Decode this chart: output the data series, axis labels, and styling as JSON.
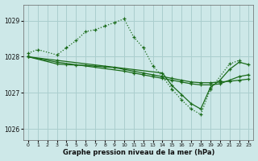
{
  "xlabel": "Graphe pression niveau de la mer (hPa)",
  "background_color": "#cde8e8",
  "grid_color": "#aacece",
  "line_color": "#1a6b1a",
  "xlim": [
    -0.5,
    23.5
  ],
  "ylim": [
    1025.7,
    1029.45
  ],
  "yticks": [
    1026,
    1027,
    1028,
    1029
  ],
  "xticks": [
    0,
    1,
    2,
    3,
    4,
    5,
    6,
    7,
    8,
    9,
    10,
    11,
    12,
    13,
    14,
    15,
    16,
    17,
    18,
    19,
    20,
    21,
    22,
    23
  ],
  "figsize": [
    3.2,
    2.0
  ],
  "dpi": 100,
  "series": [
    {
      "x": [
        0,
        1,
        3,
        4,
        5,
        6,
        7,
        8,
        9,
        10,
        11,
        12,
        13,
        14,
        15,
        16,
        17,
        18,
        19,
        21,
        22
      ],
      "y": [
        1028.1,
        1028.2,
        1028.05,
        1028.25,
        1028.45,
        1028.7,
        1028.75,
        1028.85,
        1028.95,
        1029.05,
        1028.55,
        1028.25,
        1027.75,
        1027.45,
        1027.1,
        1026.8,
        1026.55,
        1026.4,
        1027.1,
        1027.8,
        1027.9
      ],
      "linestyle": ":",
      "linewidth": 0.9,
      "markersize": 3.5,
      "marker": "+"
    },
    {
      "x": [
        0,
        3,
        4,
        5,
        6,
        7,
        8,
        9,
        10,
        11,
        12,
        13,
        14,
        15,
        16,
        17,
        18,
        19,
        20,
        21,
        22,
        23
      ],
      "y": [
        1028.0,
        1027.8,
        1027.78,
        1027.77,
        1027.76,
        1027.74,
        1027.72,
        1027.7,
        1027.65,
        1027.6,
        1027.55,
        1027.5,
        1027.45,
        1027.4,
        1027.35,
        1027.3,
        1027.28,
        1027.28,
        1027.3,
        1027.32,
        1027.35,
        1027.38
      ],
      "linestyle": "-",
      "linewidth": 0.9,
      "markersize": 2.5,
      "marker": "+"
    },
    {
      "x": [
        0,
        3,
        10,
        11,
        12,
        13,
        14,
        15,
        16,
        17,
        18,
        19,
        20,
        21,
        22,
        23
      ],
      "y": [
        1028.0,
        1027.85,
        1027.6,
        1027.55,
        1027.5,
        1027.45,
        1027.4,
        1027.35,
        1027.3,
        1027.25,
        1027.22,
        1027.22,
        1027.25,
        1027.35,
        1027.45,
        1027.5
      ],
      "linestyle": "-",
      "linewidth": 0.9,
      "markersize": 2.5,
      "marker": "+"
    },
    {
      "x": [
        0,
        3,
        14,
        15,
        16,
        17,
        18,
        19,
        20,
        21,
        22,
        23
      ],
      "y": [
        1028.0,
        1027.9,
        1027.55,
        1027.2,
        1026.95,
        1026.7,
        1026.55,
        1027.15,
        1027.35,
        1027.65,
        1027.85,
        1027.78
      ],
      "linestyle": "-",
      "linewidth": 0.9,
      "markersize": 2.5,
      "marker": "+"
    }
  ]
}
